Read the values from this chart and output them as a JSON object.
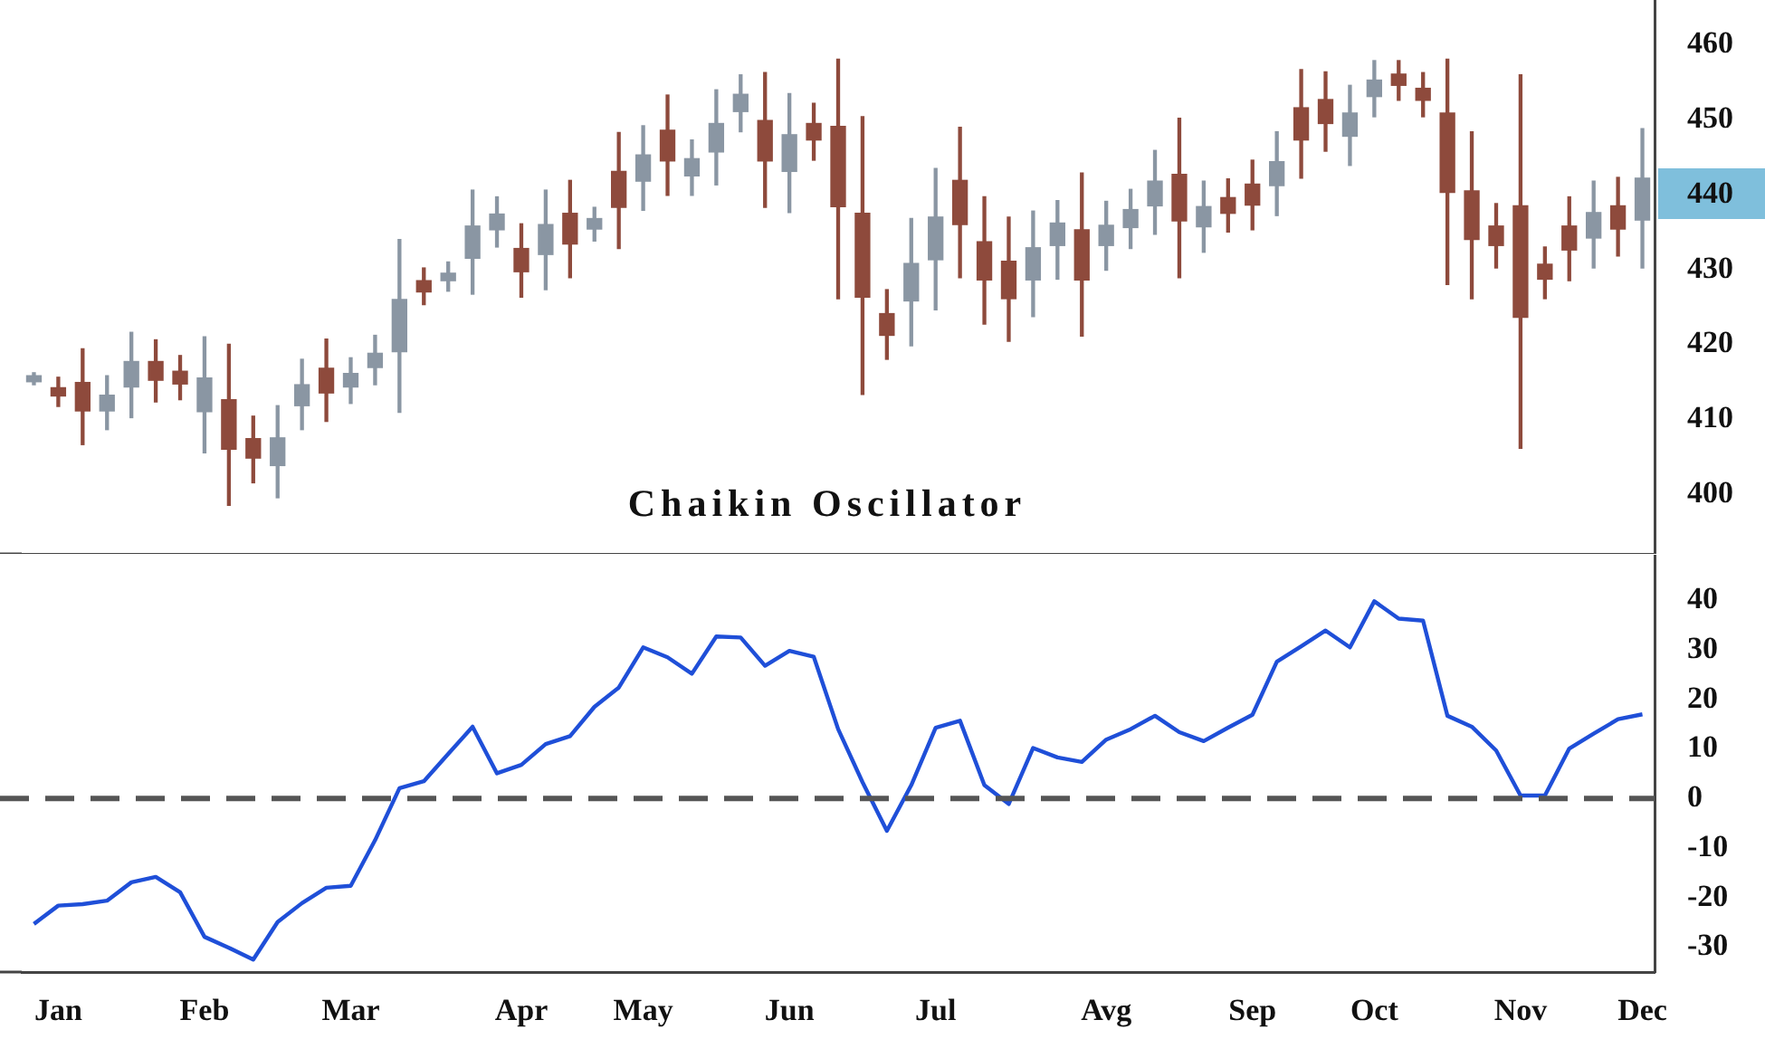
{
  "chart_data": [
    {
      "type": "candlestick",
      "categories": [
        null,
        null,
        null,
        null,
        null,
        null,
        null,
        null,
        null,
        null,
        null,
        null,
        null,
        null,
        null,
        null,
        null,
        null,
        null,
        null,
        null,
        null,
        null,
        null,
        null,
        null,
        null,
        null,
        null,
        null,
        null,
        null,
        null,
        null,
        null,
        null,
        null,
        null,
        null,
        null,
        null,
        null,
        null,
        null,
        null,
        null,
        null,
        null,
        null,
        null,
        null,
        null,
        null,
        null,
        null,
        null,
        null,
        null,
        null,
        null,
        null,
        null,
        null,
        null,
        null,
        null,
        null
      ],
      "ohlc": [
        [
          415.0,
          416.2,
          414.6,
          415.8
        ],
        [
          414.2,
          415.6,
          411.7,
          413.1
        ],
        [
          414.9,
          419.4,
          406.6,
          411.1
        ],
        [
          411.1,
          415.8,
          408.6,
          413.2
        ],
        [
          414.3,
          421.6,
          410.2,
          417.7
        ],
        [
          417.7,
          420.6,
          412.3,
          415.2
        ],
        [
          416.4,
          418.5,
          412.6,
          414.7
        ],
        [
          411.0,
          421.0,
          405.5,
          415.5
        ],
        [
          412.6,
          420.0,
          398.5,
          406.0
        ],
        [
          407.4,
          410.4,
          401.5,
          404.8
        ],
        [
          403.8,
          411.8,
          399.5,
          407.5
        ],
        [
          411.8,
          418.0,
          408.6,
          414.6
        ],
        [
          416.8,
          420.7,
          409.7,
          413.5
        ],
        [
          414.3,
          418.2,
          412.1,
          416.1
        ],
        [
          416.9,
          421.2,
          414.6,
          418.8
        ],
        [
          419.0,
          434.0,
          410.9,
          426.0
        ],
        [
          428.5,
          430.2,
          425.3,
          427.0
        ],
        [
          428.5,
          431.0,
          427.1,
          429.5
        ],
        [
          431.5,
          440.6,
          426.7,
          435.8
        ],
        [
          435.3,
          439.7,
          433.0,
          437.4
        ],
        [
          432.8,
          436.1,
          426.3,
          429.7
        ],
        [
          432.0,
          440.6,
          427.3,
          436.0
        ],
        [
          437.5,
          441.9,
          428.9,
          433.4
        ],
        [
          435.4,
          438.3,
          433.8,
          436.8
        ],
        [
          443.1,
          448.3,
          432.8,
          438.3
        ],
        [
          441.8,
          449.2,
          437.9,
          445.3
        ],
        [
          448.6,
          453.3,
          439.9,
          444.5
        ],
        [
          442.5,
          447.3,
          439.9,
          444.8
        ],
        [
          445.7,
          454.0,
          441.3,
          449.5
        ],
        [
          451.1,
          456.0,
          448.4,
          453.4
        ],
        [
          449.9,
          456.3,
          438.3,
          444.5
        ],
        [
          443.1,
          453.5,
          437.6,
          448.0
        ],
        [
          449.5,
          452.2,
          444.6,
          447.3
        ],
        [
          449.1,
          458.1,
          426.1,
          438.4
        ],
        [
          437.5,
          450.4,
          413.3,
          426.3
        ],
        [
          424.1,
          427.3,
          418.0,
          421.2
        ],
        [
          425.8,
          436.8,
          419.8,
          430.8
        ],
        [
          431.3,
          443.5,
          424.6,
          437.0
        ],
        [
          441.9,
          449.0,
          428.9,
          436.0
        ],
        [
          433.7,
          439.7,
          422.7,
          428.6
        ],
        [
          431.1,
          437.0,
          420.4,
          426.1
        ],
        [
          428.6,
          437.8,
          423.7,
          432.9
        ],
        [
          433.2,
          439.2,
          428.7,
          436.2
        ],
        [
          435.3,
          442.9,
          421.1,
          428.6
        ],
        [
          433.2,
          439.1,
          429.9,
          435.9
        ],
        [
          435.6,
          440.7,
          432.8,
          438.0
        ],
        [
          438.5,
          445.9,
          434.7,
          441.8
        ],
        [
          442.7,
          450.2,
          428.9,
          436.5
        ],
        [
          435.7,
          441.8,
          432.3,
          438.4
        ],
        [
          439.6,
          442.1,
          435.0,
          437.5
        ],
        [
          441.4,
          444.6,
          435.3,
          438.6
        ],
        [
          441.2,
          448.4,
          437.2,
          444.4
        ],
        [
          451.6,
          456.7,
          442.2,
          447.3
        ],
        [
          452.7,
          456.4,
          445.8,
          449.5
        ],
        [
          447.8,
          454.6,
          443.9,
          450.9
        ],
        [
          453.1,
          457.9,
          450.4,
          455.3
        ],
        [
          456.1,
          457.9,
          452.6,
          454.6
        ],
        [
          454.2,
          456.3,
          450.4,
          452.6
        ],
        [
          450.9,
          458.1,
          428.0,
          440.3
        ],
        [
          440.5,
          448.4,
          426.1,
          434.0
        ],
        [
          435.8,
          438.8,
          430.2,
          433.2
        ],
        [
          438.5,
          456.0,
          406.1,
          423.6
        ],
        [
          430.7,
          433.0,
          426.1,
          428.7
        ],
        [
          435.8,
          439.7,
          428.5,
          432.6
        ],
        [
          434.2,
          441.8,
          430.2,
          437.6
        ],
        [
          438.5,
          442.3,
          431.8,
          435.4
        ],
        [
          436.6,
          448.8,
          430.2,
          442.2
        ]
      ],
      "colors": [
        "#8a96a3",
        "#8e4a3c",
        "#8e4a3c",
        "#8a96a3",
        "#8a96a3",
        "#8e4a3c",
        "#8e4a3c",
        "#8a96a3",
        "#8e4a3c",
        "#8e4a3c",
        "#8a96a3",
        "#8a96a3",
        "#8e4a3c",
        "#8a96a3",
        "#8a96a3",
        "#8a96a3",
        "#8e4a3c",
        "#8a96a3",
        "#8a96a3",
        "#8a96a3",
        "#8e4a3c",
        "#8a96a3",
        "#8e4a3c",
        "#8a96a3",
        "#8e4a3c",
        "#8a96a3",
        "#8e4a3c",
        "#8a96a3",
        "#8a96a3",
        "#8a96a3",
        "#8e4a3c",
        "#8a96a3",
        "#8e4a3c",
        "#8e4a3c",
        "#8e4a3c",
        "#8e4a3c",
        "#8a96a3",
        "#8a96a3",
        "#8e4a3c",
        "#8e4a3c",
        "#8e4a3c",
        "#8a96a3",
        "#8a96a3",
        "#8e4a3c",
        "#8a96a3",
        "#8a96a3",
        "#8a96a3",
        "#8e4a3c",
        "#8a96a3",
        "#8e4a3c",
        "#8e4a3c",
        "#8a96a3",
        "#8e4a3c",
        "#8e4a3c",
        "#8a96a3",
        "#8a96a3",
        "#8e4a3c",
        "#8e4a3c",
        "#8e4a3c",
        "#8e4a3c",
        "#8e4a3c",
        "#8e4a3c",
        "#8e4a3c",
        "#8e4a3c",
        "#8a96a3",
        "#8e4a3c",
        "#8a96a3"
      ],
      "ylim": [
        392,
        466
      ],
      "yticks": [
        400,
        410,
        420,
        430,
        440,
        450,
        460
      ],
      "tick_labels": "y"
    },
    {
      "type": "line",
      "title": "Chaikin Oscillator",
      "categories": [
        null,
        "Jan",
        null,
        null,
        null,
        null,
        null,
        "Feb",
        null,
        null,
        null,
        null,
        null,
        "Mar",
        null,
        null,
        null,
        null,
        null,
        null,
        "Apr",
        null,
        null,
        null,
        null,
        "May",
        null,
        null,
        null,
        null,
        null,
        "Jun",
        null,
        null,
        null,
        null,
        null,
        "Jul",
        null,
        null,
        null,
        null,
        null,
        null,
        "Avg",
        null,
        null,
        null,
        null,
        null,
        "Sep",
        null,
        null,
        null,
        null,
        "Oct",
        null,
        null,
        null,
        null,
        null,
        "Nov",
        null,
        null,
        null,
        null,
        "Dec"
      ],
      "series": [
        {
          "color": "#1f4fd8",
          "values": [
            -25.3,
            -21.6,
            -21.3,
            -20.6,
            -16.9,
            -15.8,
            -18.9,
            -27.9,
            -30.1,
            -32.5,
            -24.9,
            -21.1,
            -18.0,
            -17.6,
            -8.4,
            2.1,
            3.5,
            9.0,
            14.5,
            5.1,
            6.8,
            11.0,
            12.6,
            18.5,
            22.4,
            30.5,
            28.5,
            25.2,
            32.7,
            32.5,
            26.8,
            29.8,
            28.6,
            14.0,
            3.3,
            -6.5,
            2.7,
            14.3,
            15.7,
            2.7,
            -1.1,
            10.2,
            8.3,
            7.4,
            11.9,
            14.0,
            16.7,
            13.4,
            11.6,
            14.3,
            16.9,
            27.6,
            30.7,
            33.9,
            30.5,
            39.8,
            36.3,
            35.9,
            16.7,
            14.5,
            9.7,
            0.6,
            0.6,
            10.1,
            13.1,
            16.0,
            17.0
          ]
        }
      ],
      "marker": "none",
      "ylim": [
        -35,
        49
      ],
      "yticks": [
        -30,
        -20,
        -10,
        0,
        10,
        20,
        30,
        40
      ],
      "ref_lines": [
        {
          "axis": "y",
          "value": 0,
          "color": "#555555",
          "line_style": "dashed"
        }
      ]
    }
  ]
}
